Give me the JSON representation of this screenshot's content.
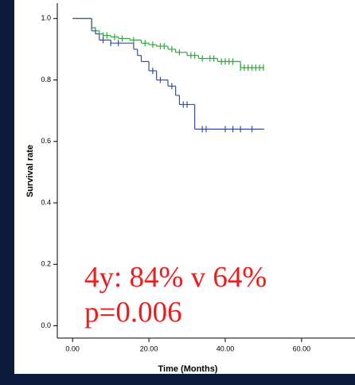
{
  "chart_data": {
    "type": "step",
    "y_label": "Survival rate",
    "x_label": "Time (Months)",
    "annotations": [
      "4y: 84% v 64%",
      "p=0.006"
    ],
    "xlim": [
      -4,
      74
    ],
    "ylim": [
      -0.04,
      1.05
    ],
    "xticks": [
      {
        "value": 0,
        "label": "0.00"
      },
      {
        "value": 20,
        "label": "20.00"
      },
      {
        "value": 40,
        "label": "40.00"
      },
      {
        "value": 60,
        "label": "60.00"
      }
    ],
    "yticks": [
      {
        "value": 0,
        "label": "0.0"
      },
      {
        "value": 0.2,
        "label": "0.2"
      },
      {
        "value": 0.4,
        "label": "0.4"
      },
      {
        "value": 0.6,
        "label": "0.6"
      },
      {
        "value": 0.8,
        "label": "0.8"
      },
      {
        "value": 1,
        "label": "1.0"
      }
    ],
    "series": [
      {
        "color": "#2eaa3a",
        "x": [
          0,
          5,
          6,
          7,
          8,
          10,
          12,
          15,
          18,
          20,
          22,
          25,
          27,
          30,
          33,
          38,
          44,
          50
        ],
        "values": [
          1,
          0.97,
          0.96,
          0.95,
          0.945,
          0.94,
          0.935,
          0.93,
          0.92,
          0.915,
          0.91,
          0.9,
          0.89,
          0.88,
          0.87,
          0.86,
          0.84,
          0.84
        ],
        "censored_x": [
          6,
          8,
          9,
          11,
          13,
          16,
          19,
          21,
          23,
          24,
          26,
          28,
          31,
          32,
          34,
          36,
          37,
          39,
          40,
          41,
          42,
          44,
          45,
          46,
          47,
          48,
          49,
          50
        ]
      },
      {
        "color": "#3a4f9a",
        "x": [
          0,
          5,
          6,
          7,
          10,
          16,
          17,
          18,
          20,
          22,
          25,
          27,
          28,
          32,
          50
        ],
        "values": [
          1,
          0.96,
          0.95,
          0.93,
          0.92,
          0.9,
          0.88,
          0.86,
          0.83,
          0.8,
          0.78,
          0.75,
          0.72,
          0.64,
          0.64
        ],
        "censored_x": [
          8,
          10,
          12,
          21,
          23,
          26,
          29,
          30,
          34,
          35,
          40,
          42,
          44,
          47
        ]
      }
    ]
  }
}
